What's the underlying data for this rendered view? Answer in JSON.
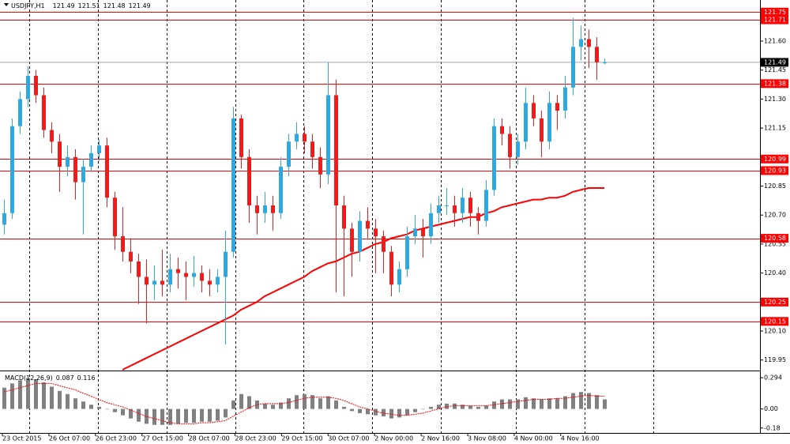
{
  "chart_data": {
    "type": "candlestick",
    "symbol": "USDJPY,H1",
    "quote": [
      121.49,
      121.51,
      121.48,
      121.49
    ],
    "up_color": "#2fa8e0",
    "down_color": "#ee1c1c",
    "candles": [
      [
        120.65,
        120.78,
        120.6,
        120.71
      ],
      [
        120.71,
        121.2,
        120.68,
        121.16
      ],
      [
        121.16,
        121.34,
        121.12,
        121.3
      ],
      [
        121.3,
        121.47,
        121.26,
        121.42
      ],
      [
        121.42,
        121.45,
        121.28,
        121.32
      ],
      [
        121.32,
        121.36,
        121.1,
        121.14
      ],
      [
        121.14,
        121.18,
        121.02,
        121.08
      ],
      [
        121.08,
        121.12,
        120.82,
        120.95
      ],
      [
        120.95,
        121.06,
        120.9,
        121.0
      ],
      [
        121.0,
        121.04,
        120.78,
        120.87
      ],
      [
        120.87,
        120.99,
        120.6,
        120.95
      ],
      [
        120.95,
        121.06,
        120.92,
        121.02
      ],
      [
        121.02,
        121.09,
        120.98,
        121.06
      ],
      [
        121.06,
        121.1,
        120.74,
        120.79
      ],
      [
        120.79,
        120.82,
        120.52,
        120.59
      ],
      [
        120.59,
        120.74,
        120.46,
        120.51
      ],
      [
        120.51,
        120.58,
        120.4,
        120.46
      ],
      [
        120.46,
        120.5,
        120.24,
        120.38
      ],
      [
        120.38,
        120.47,
        120.14,
        120.34
      ],
      [
        120.34,
        120.44,
        120.26,
        120.36
      ],
      [
        120.36,
        120.52,
        120.28,
        120.34
      ],
      [
        120.34,
        120.5,
        120.3,
        120.42
      ],
      [
        120.42,
        120.48,
        120.32,
        120.4
      ],
      [
        120.4,
        120.46,
        120.26,
        120.38
      ],
      [
        120.38,
        120.49,
        120.33,
        120.4
      ],
      [
        120.4,
        120.44,
        120.3,
        120.36
      ],
      [
        120.36,
        120.42,
        120.28,
        120.34
      ],
      [
        120.34,
        120.42,
        120.3,
        120.38
      ],
      [
        120.38,
        120.62,
        120.03,
        120.51
      ],
      [
        120.51,
        121.26,
        120.48,
        121.2
      ],
      [
        121.2,
        121.22,
        120.94,
        121.0
      ],
      [
        121.0,
        121.04,
        120.66,
        120.75
      ],
      [
        120.75,
        120.8,
        120.6,
        120.71
      ],
      [
        120.71,
        120.82,
        120.66,
        120.75
      ],
      [
        120.75,
        120.8,
        120.62,
        120.71
      ],
      [
        120.71,
        121.0,
        120.68,
        120.95
      ],
      [
        120.95,
        121.12,
        120.9,
        121.08
      ],
      [
        121.08,
        121.18,
        121.04,
        121.12
      ],
      [
        121.12,
        121.16,
        121.02,
        121.08
      ],
      [
        121.08,
        121.12,
        120.94,
        121.0
      ],
      [
        121.0,
        121.05,
        120.84,
        120.91
      ],
      [
        120.91,
        121.49,
        120.86,
        121.32
      ],
      [
        121.32,
        121.4,
        120.3,
        120.75
      ],
      [
        120.75,
        120.8,
        120.28,
        120.63
      ],
      [
        120.63,
        120.66,
        120.38,
        120.51
      ],
      [
        120.51,
        120.72,
        120.46,
        120.67
      ],
      [
        120.67,
        120.74,
        120.58,
        120.63
      ],
      [
        120.63,
        120.68,
        120.4,
        120.59
      ],
      [
        120.59,
        120.62,
        120.4,
        120.51
      ],
      [
        120.51,
        120.54,
        120.28,
        120.34
      ],
      [
        120.34,
        120.46,
        120.3,
        120.42
      ],
      [
        120.42,
        120.64,
        120.38,
        120.59
      ],
      [
        120.59,
        120.7,
        120.55,
        120.63
      ],
      [
        120.63,
        120.68,
        120.48,
        120.59
      ],
      [
        120.59,
        120.76,
        120.55,
        120.71
      ],
      [
        120.71,
        120.8,
        120.66,
        120.75
      ],
      [
        120.75,
        120.84,
        120.7,
        120.75
      ],
      [
        120.75,
        120.8,
        120.64,
        120.71
      ],
      [
        120.71,
        120.84,
        120.66,
        120.79
      ],
      [
        120.79,
        120.82,
        120.64,
        120.71
      ],
      [
        120.71,
        120.74,
        120.6,
        120.67
      ],
      [
        120.67,
        120.88,
        120.64,
        120.83
      ],
      [
        120.83,
        121.2,
        120.8,
        121.16
      ],
      [
        121.16,
        121.2,
        121.06,
        121.12
      ],
      [
        121.12,
        121.16,
        120.94,
        121.0
      ],
      [
        121.0,
        121.12,
        120.96,
        121.08
      ],
      [
        121.08,
        121.36,
        121.04,
        121.28
      ],
      [
        121.28,
        121.32,
        121.16,
        121.2
      ],
      [
        121.2,
        121.24,
        121.0,
        121.08
      ],
      [
        121.08,
        121.34,
        121.04,
        121.28
      ],
      [
        121.28,
        121.32,
        121.14,
        121.24
      ],
      [
        121.24,
        121.42,
        121.2,
        121.36
      ],
      [
        121.36,
        121.72,
        121.32,
        121.57
      ],
      [
        121.57,
        121.68,
        121.5,
        121.61
      ],
      [
        121.61,
        121.66,
        121.46,
        121.57
      ],
      [
        121.57,
        121.62,
        121.4,
        121.49
      ],
      [
        121.49,
        121.51,
        121.48,
        121.49
      ]
    ],
    "ylim": [
      119.904,
      121.8125
    ],
    "yticks": [
      {
        "value": 121.6,
        "label": "121.60"
      },
      121.45,
      {
        "value": 121.3,
        "label": "121.30"
      },
      121.15,
      120.85,
      {
        "value": 120.7,
        "label": "120.70"
      },
      120.55,
      {
        "value": 120.4,
        "label": "120.40"
      },
      {
        "value": 120.1,
        "label": "120.10"
      },
      119.95
    ],
    "levels": [
      121.75,
      121.71,
      121.38,
      120.99,
      120.93,
      120.58,
      120.25,
      120.15
    ],
    "level_color": "#ff0000",
    "last_price": 121.49,
    "ma": {
      "color": "#ff0000",
      "values": [
        null,
        null,
        null,
        null,
        null,
        null,
        null,
        null,
        null,
        null,
        null,
        null,
        null,
        null,
        null,
        119.9,
        119.92,
        119.94,
        119.96,
        119.98,
        120.0,
        120.02,
        120.04,
        120.06,
        120.08,
        120.1,
        120.12,
        120.14,
        120.16,
        120.18,
        120.21,
        120.23,
        120.25,
        120.28,
        120.3,
        120.32,
        120.34,
        120.36,
        120.38,
        120.41,
        120.43,
        120.45,
        120.46,
        120.48,
        120.5,
        120.51,
        120.53,
        120.55,
        120.56,
        120.58,
        120.59,
        120.6,
        120.62,
        120.63,
        120.64,
        120.65,
        120.66,
        120.67,
        120.68,
        120.69,
        120.69,
        120.71,
        120.72,
        120.74,
        120.75,
        120.76,
        120.77,
        120.78,
        120.78,
        120.79,
        120.79,
        120.8,
        120.82,
        120.83,
        120.84,
        120.84,
        120.84
      ]
    },
    "x_labels": [
      "23 Oct 2015",
      "26 Oct 07:00",
      "26 Oct 23:00",
      "27 Oct 15:00",
      "28 Oct 07:00",
      "28 Oct 23:00",
      "29 Oct 15:00",
      "30 Oct 07:00",
      "2 Nov 00:00",
      "2 Nov 16:00",
      "3 Nov 08:00",
      "4 Nov 00:00",
      "4 Nov 16:00"
    ],
    "indicator": {
      "name": "MACD(12,26,9)",
      "readout": [
        0.087,
        0.116
      ],
      "hist_color": "#808080",
      "signal_color": "#ff0000",
      "histogram": [
        0.2,
        0.24,
        0.27,
        0.29,
        0.28,
        0.25,
        0.21,
        0.17,
        0.14,
        0.1,
        0.07,
        0.04,
        0.02,
        0.0,
        -0.03,
        -0.06,
        -0.09,
        -0.12,
        -0.14,
        -0.15,
        -0.15,
        -0.15,
        -0.14,
        -0.13,
        -0.13,
        -0.12,
        -0.12,
        -0.11,
        -0.08,
        0.08,
        0.14,
        0.12,
        0.08,
        0.05,
        0.04,
        0.06,
        0.1,
        0.13,
        0.14,
        0.13,
        0.1,
        0.12,
        0.08,
        0.02,
        -0.02,
        -0.04,
        -0.05,
        -0.06,
        -0.07,
        -0.09,
        -0.08,
        -0.06,
        -0.03,
        0.0,
        0.02,
        0.04,
        0.05,
        0.05,
        0.04,
        0.03,
        0.02,
        0.03,
        0.07,
        0.09,
        0.09,
        0.09,
        0.11,
        0.1,
        0.09,
        0.1,
        0.1,
        0.12,
        0.15,
        0.16,
        0.15,
        0.13,
        0.09
      ],
      "signal": [
        0.16,
        0.18,
        0.2,
        0.22,
        0.24,
        0.24,
        0.24,
        0.22,
        0.2,
        0.18,
        0.15,
        0.12,
        0.09,
        0.06,
        0.04,
        0.02,
        -0.01,
        -0.04,
        -0.07,
        -0.09,
        -0.11,
        -0.13,
        -0.14,
        -0.14,
        -0.14,
        -0.13,
        -0.13,
        -0.12,
        -0.11,
        -0.07,
        -0.03,
        0.01,
        0.04,
        0.05,
        0.05,
        0.05,
        0.06,
        0.08,
        0.1,
        0.11,
        0.11,
        0.11,
        0.1,
        0.08,
        0.05,
        0.02,
        0.0,
        -0.02,
        -0.04,
        -0.05,
        -0.06,
        -0.06,
        -0.05,
        -0.04,
        -0.02,
        0.0,
        0.02,
        0.03,
        0.03,
        0.03,
        0.03,
        0.03,
        0.04,
        0.05,
        0.06,
        0.07,
        0.08,
        0.09,
        0.09,
        0.09,
        0.1,
        0.1,
        0.11,
        0.12,
        0.13,
        0.12,
        0.12
      ],
      "ylim": [
        -0.226,
        0.347
      ],
      "yticks": [
        0.294,
        {
          "value": 0,
          "label": "0.00"
        },
        -0.18
      ]
    }
  }
}
